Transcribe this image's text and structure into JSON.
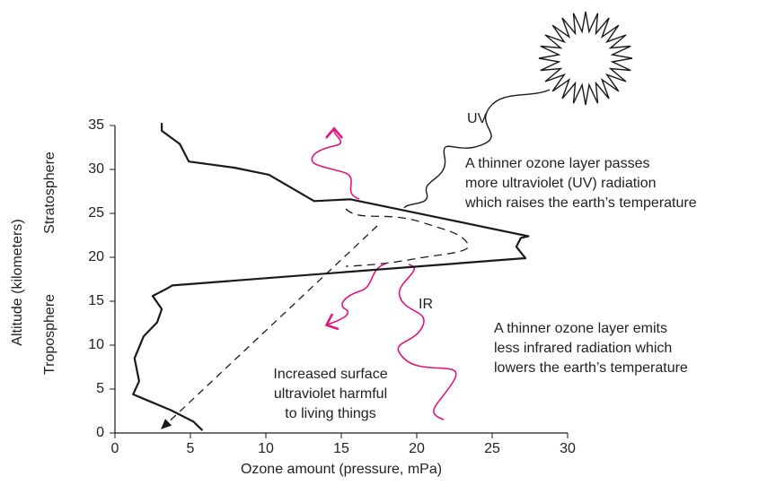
{
  "chart_data": {
    "type": "line",
    "x_label": "Ozone amount (pressure, mPa)",
    "y_label": "Altitude (kilometers)",
    "regions": [
      "Stratosphere",
      "Troposphere"
    ],
    "color": "#1a1a1a",
    "x": [
      5.8,
      5.2,
      3.7,
      1.9,
      1.2,
      1.6,
      1.3,
      1.9,
      2.8,
      3.1,
      2.5,
      3.4,
      3.8,
      25.7,
      27.2,
      26.6,
      26.9,
      27.4,
      15.6,
      13.2,
      10.2,
      7.9,
      4.9,
      4.3,
      3.1,
      3.1
    ],
    "values": [
      0.3,
      1.3,
      2.6,
      3.9,
      4.4,
      5.9,
      8.5,
      11,
      12.6,
      14.1,
      15.6,
      16.4,
      16.8,
      19.7,
      19.9,
      21.2,
      22.2,
      22.4,
      26.6,
      26.4,
      29.4,
      30.2,
      30.9,
      32.9,
      34.4,
      35.3
    ],
    "xlim": [
      0,
      30
    ],
    "ylim": [
      0,
      35
    ],
    "xticks": [
      0,
      5,
      10,
      15,
      20,
      25,
      30
    ],
    "yticks": [
      0,
      5,
      10,
      15,
      20,
      25,
      30,
      35
    ],
    "annotations": {
      "uv_label": "UV",
      "uv_text": [
        "A thinner ozone layer passes",
        "more ultraviolet (UV) radiation",
        "which raises the earth’s temperature"
      ],
      "ir_label": "IR",
      "ir_text": [
        "A thinner ozone layer emits",
        "less infrared radiation which",
        "lowers the earth’s temperature"
      ],
      "surface_text": [
        "Increased surface",
        "ultraviolet harmful",
        "to living things"
      ]
    }
  }
}
